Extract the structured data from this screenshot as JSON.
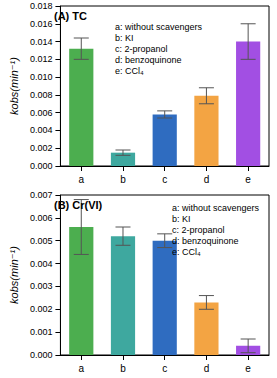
{
  "chart_data": [
    {
      "type": "bar",
      "title": "(A) TC",
      "ylabel": "kobs(min⁻¹)",
      "categories": [
        "a",
        "b",
        "c",
        "d",
        "e"
      ],
      "values": [
        0.0132,
        0.0015,
        0.0058,
        0.0079,
        0.014
      ],
      "errors": [
        0.0012,
        0.0003,
        0.0004,
        0.0009,
        0.002
      ],
      "colors": [
        "#4cae4f",
        "#3ea89f",
        "#2f6cc0",
        "#f3a443",
        "#a24fe3"
      ],
      "annotations": [
        "a: without scavengers",
        "b: KI",
        "c: 2-propanol",
        "d: benzoquinone",
        "e: CCl₄"
      ],
      "ylim": [
        0,
        0.018
      ],
      "yticks": [
        {
          "value": 0,
          "label": "0.000"
        },
        {
          "value": 0.002,
          "label": "0.002"
        },
        {
          "value": 0.004,
          "label": "0.004"
        },
        {
          "value": 0.006,
          "label": "0.006"
        },
        {
          "value": 0.008,
          "label": "0.008"
        },
        {
          "value": 0.01,
          "label": "0.010"
        },
        {
          "value": 0.012,
          "label": "0.012"
        },
        {
          "value": 0.014,
          "label": "0.014"
        },
        {
          "value": 0.016,
          "label": "0.016"
        },
        {
          "value": 0.018,
          "label": "0.018"
        }
      ],
      "grid": false
    },
    {
      "type": "bar",
      "title": "(B) Cr(VI)",
      "ylabel": "kobs(min⁻¹)",
      "categories": [
        "a",
        "b",
        "c",
        "d",
        "e"
      ],
      "values": [
        0.0056,
        0.0052,
        0.005,
        0.0023,
        0.0004
      ],
      "errors": [
        0.0012,
        0.0004,
        0.0003,
        0.0003,
        0.0003
      ],
      "colors": [
        "#4cae4f",
        "#3ea89f",
        "#2f6cc0",
        "#f3a443",
        "#a24fe3"
      ],
      "annotations": [
        "a: without scavengers",
        "b: KI",
        "c: 2-propanol",
        "d: benzoquinone",
        "e: CCl₄"
      ],
      "ylim": [
        0,
        0.007
      ],
      "yticks": [
        {
          "value": 0,
          "label": "0.000"
        },
        {
          "value": 0.001,
          "label": "0.001"
        },
        {
          "value": 0.002,
          "label": "0.002"
        },
        {
          "value": 0.003,
          "label": "0.003"
        },
        {
          "value": 0.004,
          "label": "0.004"
        },
        {
          "value": 0.005,
          "label": "0.005"
        },
        {
          "value": 0.006,
          "label": "0.006"
        },
        {
          "value": 0.007,
          "label": "0.007"
        }
      ],
      "grid": false
    }
  ]
}
